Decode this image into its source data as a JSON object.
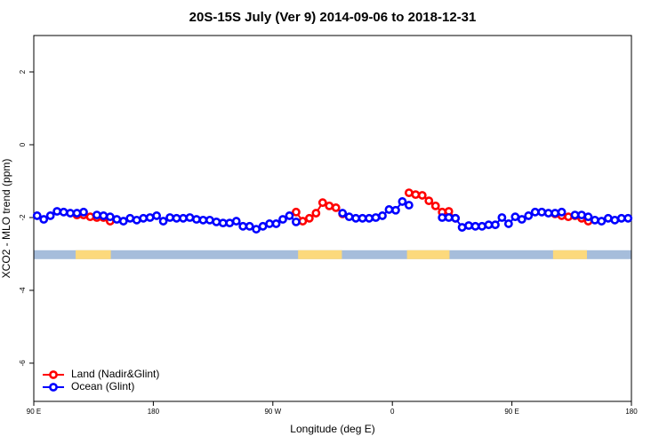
{
  "chart_data": {
    "type": "line",
    "title": "20S-15S July (Ver 9)   2014-09-06 to 2018-12-31",
    "x_label": "Longitude (deg E)",
    "y_label": "XCO2 - MLO trend (ppm)",
    "xlim": [
      90,
      540
    ],
    "ylim": [
      -7.05,
      3.0
    ],
    "xticks": [
      {
        "value": 90,
        "label": "90 E"
      },
      180,
      {
        "value": 270,
        "label": "90 W"
      },
      {
        "value": 360,
        "label": "0"
      },
      {
        "value": 450,
        "label": "90 E"
      },
      {
        "value": 540,
        "label": "180"
      }
    ],
    "yticks": [
      2,
      0,
      -2,
      -4,
      -6
    ],
    "legend": "bottom-left",
    "land_mask": {
      "y": -3.02,
      "ocean_color": "#a6bddb",
      "land_color": "#fcd97c",
      "land_spans": [
        [
          121.5,
          148
        ],
        [
          289,
          322
        ],
        [
          371,
          403
        ],
        [
          481,
          506.5
        ]
      ]
    },
    "series": [
      {
        "name": "Land (Nadir&Glint)",
        "color": "#ff0000",
        "x": [
          122.5,
          127.5,
          132.5,
          137.5,
          142.5,
          147.5,
          null,
          287.5,
          292.5,
          297.5,
          302.5,
          307.5,
          312.5,
          317.5,
          322.5,
          null,
          372.5,
          377.5,
          382.5,
          387.5,
          392.5,
          397.5,
          402.5,
          407.5,
          null,
          482.5,
          487.5,
          492.5,
          497.5,
          502.5,
          507.5
        ],
        "values": [
          -1.93,
          -1.93,
          -1.98,
          -2.0,
          -2.0,
          -2.1,
          null,
          -1.85,
          -2.1,
          -2.02,
          -1.88,
          -1.59,
          -1.68,
          -1.73,
          -1.9,
          null,
          -1.32,
          -1.37,
          -1.39,
          -1.54,
          -1.68,
          -1.85,
          -1.83,
          -2.02,
          null,
          -1.9,
          -1.95,
          -1.98,
          -1.95,
          -2.02,
          -2.1
        ]
      },
      {
        "name": "Ocean (Glint)",
        "color": "#0000ff",
        "x": [
          92.5,
          97.5,
          102.5,
          107.5,
          112.5,
          117.5,
          122.5,
          127.5,
          132.5,
          137.5,
          142.5,
          147.5,
          152.5,
          157.5,
          162.5,
          167.5,
          172.5,
          177.5,
          182.5,
          187.5,
          192.5,
          197.5,
          202.5,
          207.5,
          212.5,
          217.5,
          222.5,
          227.5,
          232.5,
          237.5,
          242.5,
          247.5,
          252.5,
          257.5,
          262.5,
          267.5,
          272.5,
          277.5,
          282.5,
          287.5,
          292.5,
          297.5,
          302.5,
          307.5,
          312.5,
          322.5,
          317.5,
          327.5,
          332.5,
          337.5,
          342.5,
          347.5,
          352.5,
          357.5,
          362.5,
          367.5,
          372.5,
          377.5,
          382.5,
          387.5,
          392.5,
          397.5,
          402.5,
          407.5,
          412.5,
          417.5,
          422.5,
          427.5,
          432.5,
          437.5,
          442.5,
          447.5,
          452.5,
          457.5,
          462.5,
          467.5,
          472.5,
          477.5,
          482.5,
          487.5,
          492.5,
          497.5,
          502.5,
          507.5,
          512.5,
          517.5,
          522.5,
          527.5,
          532.5,
          537.5
        ],
        "values": [
          -1.95,
          -2.05,
          -1.95,
          -1.83,
          -1.85,
          -1.88,
          -1.88,
          -1.85,
          null,
          -1.93,
          -1.95,
          -1.98,
          -2.05,
          -2.1,
          -2.02,
          -2.07,
          -2.02,
          -2.0,
          -1.95,
          -2.1,
          -2.0,
          -2.02,
          -2.02,
          -2.0,
          -2.05,
          -2.07,
          -2.07,
          -2.12,
          -2.15,
          -2.15,
          -2.1,
          -2.24,
          -2.24,
          -2.32,
          -2.24,
          -2.17,
          -2.17,
          -2.05,
          -1.95,
          -2.12,
          null,
          null,
          null,
          null,
          null,
          -1.88,
          null,
          -1.98,
          -2.02,
          -2.02,
          -2.02,
          -2.0,
          -1.95,
          -1.78,
          -1.8,
          -1.56,
          -1.66,
          null,
          null,
          null,
          null,
          -2.0,
          -2.0,
          -2.02,
          -2.27,
          -2.22,
          -2.24,
          -2.24,
          -2.2,
          -2.2,
          -2.0,
          -2.17,
          -1.98,
          -2.05,
          -1.95,
          -1.85,
          -1.85,
          -1.88,
          -1.88,
          -1.85,
          null,
          -1.93,
          -1.93,
          -1.98,
          -2.07,
          -2.1,
          -2.02,
          -2.07,
          -2.02,
          -2.02
        ]
      }
    ]
  }
}
